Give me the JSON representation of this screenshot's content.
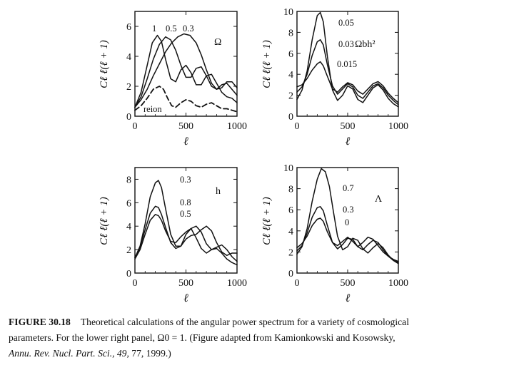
{
  "chart_data": [
    {
      "type": "line",
      "panel": "top-left",
      "xlabel": "ℓ",
      "ylabel": "Cℓ ℓ(ℓ + 1)",
      "xlim": [
        0,
        1000
      ],
      "ylim": [
        0,
        7
      ],
      "xticks": [
        "0",
        "500",
        "1000"
      ],
      "yticks": [
        "0",
        "2",
        "4",
        "6"
      ],
      "parameter_label": "Ω",
      "annotation": "reion",
      "series": [
        {
          "name": "1",
          "label": "1",
          "style": "solid",
          "x": [
            0,
            60,
            120,
            170,
            220,
            260,
            300,
            350,
            400,
            450,
            500,
            550,
            600,
            650,
            700,
            750,
            800,
            850,
            900,
            950,
            1000
          ],
          "y": [
            0.6,
            1.6,
            3.4,
            4.9,
            5.4,
            5.0,
            3.8,
            2.5,
            2.3,
            3.1,
            3.4,
            2.9,
            2.1,
            2.1,
            2.7,
            2.8,
            2.2,
            1.6,
            1.3,
            1.2,
            0.9
          ]
        },
        {
          "name": "0.5",
          "label": "0.5",
          "style": "solid",
          "x": [
            0,
            60,
            120,
            180,
            240,
            300,
            350,
            400,
            450,
            500,
            550,
            600,
            650,
            700,
            750,
            800,
            850,
            900,
            950,
            1000
          ],
          "y": [
            0.6,
            1.3,
            2.5,
            3.8,
            4.8,
            5.3,
            5.1,
            4.4,
            3.4,
            2.6,
            2.6,
            3.2,
            3.3,
            2.7,
            2.0,
            1.8,
            2.1,
            2.2,
            1.8,
            1.4
          ]
        },
        {
          "name": "0.3",
          "label": "0.3",
          "style": "solid",
          "x": [
            0,
            60,
            120,
            180,
            240,
            300,
            360,
            420,
            480,
            540,
            600,
            650,
            700,
            750,
            800,
            850,
            900,
            950,
            1000
          ],
          "y": [
            0.6,
            1.1,
            1.8,
            2.7,
            3.5,
            4.3,
            4.9,
            5.3,
            5.5,
            5.4,
            4.9,
            4.1,
            3.1,
            2.2,
            1.8,
            1.9,
            2.3,
            2.3,
            1.9
          ]
        },
        {
          "name": "reion",
          "label": "reion",
          "style": "dashed",
          "x": [
            0,
            60,
            120,
            180,
            240,
            280,
            320,
            360,
            400,
            450,
            500,
            550,
            600,
            650,
            700,
            750,
            800,
            850,
            900,
            950,
            1000
          ],
          "y": [
            0.4,
            0.7,
            1.2,
            1.8,
            2.0,
            1.8,
            1.2,
            0.7,
            0.6,
            0.9,
            1.1,
            1.0,
            0.7,
            0.6,
            0.8,
            0.9,
            0.7,
            0.5,
            0.5,
            0.4,
            0.3
          ]
        }
      ]
    },
    {
      "type": "line",
      "panel": "top-right",
      "xlabel": "ℓ",
      "ylabel": "Cℓ ℓ(ℓ + 1)",
      "xlim": [
        0,
        1000
      ],
      "ylim": [
        0,
        10
      ],
      "xticks": [
        "0",
        "500",
        "1000"
      ],
      "yticks": [
        "0",
        "2",
        "4",
        "6",
        "8",
        "10"
      ],
      "parameter_label": "Ωbh²",
      "series": [
        {
          "name": "0.05",
          "label": "0.05",
          "style": "solid",
          "x": [
            0,
            50,
            100,
            150,
            200,
            230,
            260,
            300,
            350,
            400,
            450,
            500,
            550,
            600,
            650,
            700,
            750,
            800,
            850,
            900,
            950,
            1000
          ],
          "y": [
            1.6,
            2.5,
            4.3,
            7.3,
            9.6,
            9.9,
            9.0,
            5.7,
            2.5,
            1.5,
            2.0,
            2.9,
            2.6,
            1.6,
            1.3,
            2.0,
            2.7,
            3.0,
            2.5,
            1.7,
            1.2,
            0.9
          ]
        },
        {
          "name": "0.03",
          "label": "0.03",
          "style": "solid",
          "x": [
            0,
            50,
            100,
            150,
            200,
            230,
            260,
            300,
            350,
            400,
            450,
            500,
            550,
            600,
            650,
            700,
            750,
            800,
            850,
            900,
            950,
            1000
          ],
          "y": [
            2.3,
            2.8,
            4.0,
            5.8,
            7.1,
            7.3,
            6.8,
            4.9,
            2.9,
            2.1,
            2.6,
            3.1,
            2.8,
            2.0,
            1.7,
            2.3,
            2.9,
            3.1,
            2.7,
            2.0,
            1.5,
            1.1
          ]
        },
        {
          "name": "0.015",
          "label": "0.015",
          "style": "solid",
          "x": [
            0,
            50,
            100,
            150,
            200,
            230,
            260,
            300,
            350,
            400,
            450,
            500,
            550,
            600,
            650,
            700,
            750,
            800,
            850,
            900,
            950,
            1000
          ],
          "y": [
            2.8,
            3.0,
            3.6,
            4.4,
            5.0,
            5.2,
            4.8,
            3.8,
            2.6,
            2.3,
            2.8,
            3.2,
            3.0,
            2.4,
            2.1,
            2.6,
            3.1,
            3.3,
            2.9,
            2.2,
            1.7,
            1.3
          ]
        }
      ]
    },
    {
      "type": "line",
      "panel": "bottom-left",
      "xlabel": "ℓ",
      "ylabel": "Cℓ ℓ(ℓ + 1)",
      "xlim": [
        0,
        1000
      ],
      "ylim": [
        0,
        9
      ],
      "xticks": [
        "0",
        "500",
        "1000"
      ],
      "yticks": [
        "0",
        "2",
        "4",
        "6",
        "8"
      ],
      "parameter_label": "h",
      "series": [
        {
          "name": "0.3",
          "label": "0.3",
          "style": "solid",
          "x": [
            0,
            50,
            100,
            150,
            200,
            230,
            260,
            300,
            350,
            400,
            450,
            500,
            550,
            600,
            650,
            700,
            750,
            800,
            850,
            900,
            950,
            1000
          ],
          "y": [
            1.3,
            2.3,
            4.2,
            6.5,
            7.7,
            7.9,
            7.3,
            5.5,
            3.3,
            2.3,
            2.3,
            3.3,
            3.8,
            3.0,
            2.1,
            1.7,
            2.0,
            2.1,
            1.7,
            1.2,
            0.9,
            0.7
          ]
        },
        {
          "name": "0.8",
          "label": "0.8",
          "style": "solid",
          "x": [
            0,
            50,
            100,
            150,
            200,
            230,
            260,
            300,
            350,
            400,
            450,
            500,
            550,
            600,
            650,
            700,
            750,
            800,
            850,
            900,
            950,
            1000
          ],
          "y": [
            1.3,
            2.2,
            3.7,
            5.1,
            5.7,
            5.6,
            5.0,
            3.9,
            2.6,
            2.1,
            2.3,
            2.9,
            3.2,
            3.3,
            3.7,
            4.0,
            3.6,
            2.6,
            1.8,
            1.5,
            1.7,
            1.7
          ]
        },
        {
          "name": "0.5",
          "label": "0.5",
          "style": "solid",
          "x": [
            0,
            50,
            100,
            150,
            200,
            230,
            260,
            300,
            350,
            400,
            450,
            500,
            550,
            600,
            650,
            700,
            750,
            800,
            850,
            900,
            950,
            1000
          ],
          "y": [
            1.2,
            2.0,
            3.3,
            4.5,
            5.0,
            4.9,
            4.5,
            3.6,
            2.7,
            2.6,
            3.1,
            3.5,
            3.8,
            4.0,
            3.5,
            2.5,
            2.0,
            2.2,
            2.4,
            2.0,
            1.4,
            1.0
          ]
        }
      ]
    },
    {
      "type": "line",
      "panel": "bottom-right",
      "xlabel": "ℓ",
      "ylabel": "Cℓ ℓ(ℓ + 1)",
      "xlim": [
        0,
        1000
      ],
      "ylim": [
        0,
        10
      ],
      "xticks": [
        "0",
        "500",
        "1000"
      ],
      "yticks": [
        "0",
        "2",
        "4",
        "6",
        "8",
        "10"
      ],
      "parameter_label": "Λ",
      "series": [
        {
          "name": "0.7",
          "label": "0.7",
          "style": "solid",
          "x": [
            0,
            50,
            100,
            150,
            200,
            240,
            280,
            320,
            360,
            400,
            450,
            500,
            550,
            600,
            650,
            700,
            750,
            800,
            850,
            900,
            950,
            1000
          ],
          "y": [
            1.8,
            2.5,
            4.2,
            6.8,
            8.9,
            9.9,
            9.6,
            8.2,
            5.8,
            3.5,
            2.2,
            2.5,
            3.3,
            3.1,
            2.3,
            1.9,
            2.4,
            2.8,
            2.4,
            1.7,
            1.2,
            0.9
          ]
        },
        {
          "name": "0.3",
          "label": "0.3",
          "style": "solid",
          "x": [
            0,
            50,
            100,
            150,
            200,
            230,
            260,
            300,
            350,
            400,
            450,
            500,
            550,
            600,
            650,
            700,
            750,
            800,
            850,
            900,
            950,
            1000
          ],
          "y": [
            2.1,
            2.6,
            3.8,
            5.3,
            6.2,
            6.3,
            5.9,
            4.5,
            2.9,
            2.3,
            2.7,
            3.3,
            3.2,
            2.5,
            2.2,
            2.7,
            3.1,
            2.9,
            2.2,
            1.6,
            1.2,
            1.0
          ]
        },
        {
          "name": "0",
          "label": "0",
          "style": "solid",
          "x": [
            0,
            50,
            100,
            150,
            200,
            230,
            260,
            300,
            350,
            400,
            450,
            500,
            550,
            600,
            650,
            700,
            750,
            800,
            850,
            900,
            950,
            1000
          ],
          "y": [
            2.4,
            2.8,
            3.5,
            4.5,
            5.1,
            5.2,
            4.9,
            3.9,
            2.9,
            2.6,
            3.0,
            3.4,
            3.0,
            2.5,
            2.9,
            3.4,
            3.2,
            2.6,
            2.0,
            1.6,
            1.3,
            1.1
          ]
        }
      ]
    }
  ],
  "caption": {
    "label": "FIGURE 30.18",
    "line1": "Theoretical calculations of the angular power spectrum for a variety of cosmological",
    "line2": "parameters. For the lower right panel, Ω0 = 1. (Figure adapted from Kamionkowski and Kosowsky,",
    "citation": "Annu. Rev. Nucl. Part. Sci., 49,",
    "citation_tail": "77, 1999.)"
  }
}
